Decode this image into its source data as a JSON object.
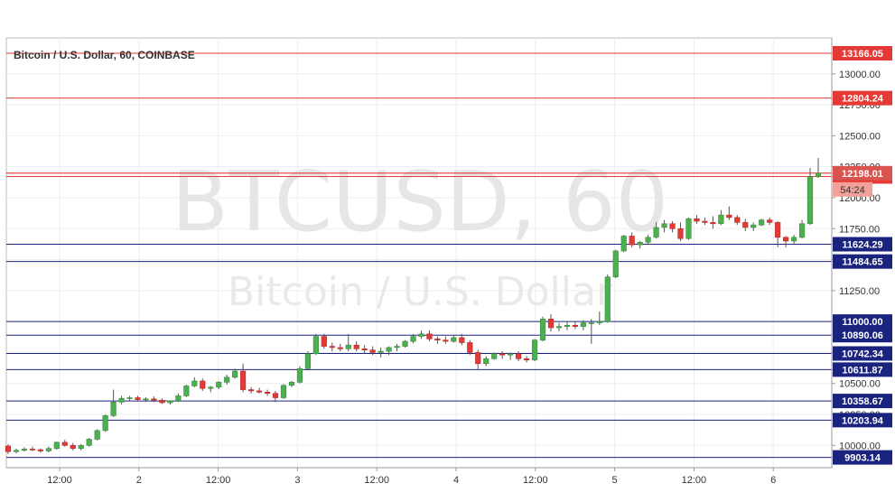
{
  "chart_data": {
    "type": "candlestick",
    "title": "Bitcoin / U.S. Dollar, 60, COINBASE",
    "watermark_symbol": "BTCUSD, 60",
    "watermark_name": "Bitcoin / U.S. Dollar",
    "ylim": [
      9820,
      13290
    ],
    "y_ticks": [
      "13000.00",
      "12750.00",
      "12500.00",
      "12250.00",
      "12000.00",
      "11750.00",
      "11500.00",
      "11250.00",
      "11000.00",
      "10750.00",
      "10500.00",
      "10250.00",
      "10000.00"
    ],
    "x_ticks": [
      "12:00",
      "2",
      "12:00",
      "3",
      "12:00",
      "4",
      "12:00",
      "5",
      "12:00",
      "6"
    ],
    "grid": true,
    "colors": {
      "up": "#4caf50",
      "down": "#e53935",
      "wick": "#555555",
      "resistance": "#e53935",
      "support": "#1a237e",
      "price_label": "#d9534f",
      "countdown": "#f2a09a"
    },
    "resistance_levels": [
      "13166.05",
      "12804.24",
      "12198.01",
      "12171.09"
    ],
    "support_levels": [
      "11624.29",
      "11484.65",
      "11000.00",
      "10890.06",
      "10742.34",
      "10611.87",
      "10358.67",
      "10203.94",
      "9903.14"
    ],
    "current_price": "12198.01",
    "countdown": "54:24",
    "series": [
      {
        "values": [
          [
            9995,
            10010,
            9930,
            9950
          ],
          [
            9950,
            9975,
            9935,
            9960
          ],
          [
            9960,
            9985,
            9950,
            9970
          ],
          [
            9970,
            9990,
            9955,
            9965
          ],
          [
            9965,
            9975,
            9940,
            9955
          ],
          [
            9955,
            9990,
            9945,
            9975
          ],
          [
            9975,
            10030,
            9965,
            10025
          ],
          [
            10025,
            10045,
            9990,
            10000
          ],
          [
            10000,
            10020,
            9960,
            9975
          ],
          [
            9975,
            10010,
            9960,
            10000
          ],
          [
            10000,
            10060,
            9990,
            10050
          ],
          [
            10050,
            10130,
            10040,
            10120
          ],
          [
            10120,
            10250,
            10110,
            10240
          ],
          [
            10240,
            10450,
            10230,
            10350
          ],
          [
            10350,
            10400,
            10330,
            10380
          ],
          [
            10380,
            10400,
            10355,
            10385
          ],
          [
            10385,
            10400,
            10360,
            10370
          ],
          [
            10370,
            10390,
            10350,
            10375
          ],
          [
            10375,
            10395,
            10350,
            10365
          ],
          [
            10365,
            10380,
            10335,
            10345
          ],
          [
            10345,
            10365,
            10330,
            10360
          ],
          [
            10360,
            10420,
            10350,
            10400
          ],
          [
            10400,
            10490,
            10390,
            10480
          ],
          [
            10480,
            10550,
            10470,
            10520
          ],
          [
            10520,
            10540,
            10440,
            10460
          ],
          [
            10460,
            10480,
            10430,
            10470
          ],
          [
            10470,
            10520,
            10455,
            10510
          ],
          [
            10510,
            10570,
            10490,
            10550
          ],
          [
            10550,
            10620,
            10540,
            10600
          ],
          [
            10600,
            10660,
            10430,
            10450
          ],
          [
            10450,
            10470,
            10420,
            10440
          ],
          [
            10440,
            10465,
            10420,
            10430
          ],
          [
            10430,
            10450,
            10400,
            10420
          ],
          [
            10420,
            10440,
            10350,
            10385
          ],
          [
            10385,
            10495,
            10375,
            10485
          ],
          [
            10485,
            10520,
            10470,
            10510
          ],
          [
            10510,
            10640,
            10500,
            10620
          ],
          [
            10620,
            10760,
            10610,
            10740
          ],
          [
            10740,
            10900,
            10730,
            10880
          ],
          [
            10880,
            10900,
            10780,
            10800
          ],
          [
            10800,
            10830,
            10760,
            10790
          ],
          [
            10790,
            10820,
            10760,
            10780
          ],
          [
            10780,
            10900,
            10760,
            10810
          ],
          [
            10810,
            10840,
            10760,
            10780
          ],
          [
            10780,
            10810,
            10740,
            10770
          ],
          [
            10770,
            10800,
            10730,
            10750
          ],
          [
            10750,
            10790,
            10710,
            10760
          ],
          [
            10760,
            10800,
            10730,
            10790
          ],
          [
            10790,
            10820,
            10760,
            10800
          ],
          [
            10800,
            10850,
            10790,
            10840
          ],
          [
            10840,
            10900,
            10825,
            10880
          ],
          [
            10880,
            10925,
            10860,
            10900
          ],
          [
            10900,
            10930,
            10840,
            10860
          ],
          [
            10860,
            10880,
            10820,
            10850
          ],
          [
            10850,
            10880,
            10820,
            10840
          ],
          [
            10840,
            10890,
            10830,
            10870
          ],
          [
            10870,
            10900,
            10810,
            10830
          ],
          [
            10830,
            10850,
            10730,
            10750
          ],
          [
            10750,
            10770,
            10610,
            10660
          ],
          [
            10660,
            10720,
            10640,
            10700
          ],
          [
            10700,
            10750,
            10690,
            10740
          ],
          [
            10740,
            10760,
            10700,
            10730
          ],
          [
            10730,
            10750,
            10690,
            10740
          ],
          [
            10740,
            10760,
            10680,
            10700
          ],
          [
            10700,
            10720,
            10670,
            10690
          ],
          [
            10690,
            10860,
            10680,
            10850
          ],
          [
            10850,
            11040,
            10840,
            11020
          ],
          [
            11020,
            11060,
            10920,
            10950
          ],
          [
            10950,
            10990,
            10920,
            10960
          ],
          [
            10960,
            11000,
            10930,
            10970
          ],
          [
            10970,
            11000,
            10940,
            10960
          ],
          [
            10960,
            11010,
            10930,
            10990
          ],
          [
            10990,
            11020,
            10820,
            10990
          ],
          [
            10990,
            11080,
            10970,
            11000
          ],
          [
            11000,
            11380,
            10990,
            11360
          ],
          [
            11360,
            11580,
            11350,
            11570
          ],
          [
            11570,
            11700,
            11560,
            11690
          ],
          [
            11690,
            11720,
            11600,
            11620
          ],
          [
            11620,
            11650,
            11590,
            11640
          ],
          [
            11640,
            11700,
            11620,
            11680
          ],
          [
            11680,
            11800,
            11670,
            11760
          ],
          [
            11760,
            11820,
            11720,
            11790
          ],
          [
            11790,
            11810,
            11720,
            11750
          ],
          [
            11750,
            11800,
            11650,
            11670
          ],
          [
            11670,
            11840,
            11660,
            11830
          ],
          [
            11830,
            11860,
            11790,
            11810
          ],
          [
            11810,
            11840,
            11780,
            11800
          ],
          [
            11800,
            11850,
            11750,
            11790
          ],
          [
            11790,
            11900,
            11780,
            11860
          ],
          [
            11860,
            11930,
            11820,
            11840
          ],
          [
            11840,
            11860,
            11780,
            11800
          ],
          [
            11800,
            11830,
            11730,
            11760
          ],
          [
            11760,
            11800,
            11730,
            11780
          ],
          [
            11780,
            11830,
            11770,
            11820
          ],
          [
            11820,
            11840,
            11780,
            11800
          ],
          [
            11800,
            11810,
            11600,
            11680
          ],
          [
            11680,
            11690,
            11600,
            11650
          ],
          [
            11650,
            11700,
            11620,
            11680
          ],
          [
            11680,
            11820,
            11670,
            11790
          ],
          [
            11790,
            12240,
            11780,
            12170
          ],
          [
            12170,
            12320,
            12160,
            12198
          ]
        ]
      }
    ]
  }
}
